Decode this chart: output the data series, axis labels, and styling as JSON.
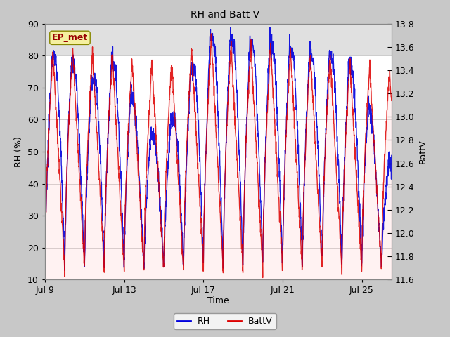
{
  "title": "RH and Batt V",
  "xlabel": "Time",
  "ylabel_left": "RH (%)",
  "ylabel_right": "BattV",
  "ylim_left": [
    10,
    90
  ],
  "ylim_right": [
    11.6,
    13.8
  ],
  "xtick_labels": [
    "Jul 9",
    "Jul 13",
    "Jul 17",
    "Jul 21",
    "Jul 25"
  ],
  "xtick_positions": [
    0,
    4,
    8,
    12,
    16
  ],
  "yticks_left": [
    10,
    20,
    30,
    40,
    50,
    60,
    70,
    80,
    90
  ],
  "yticks_right": [
    11.6,
    11.8,
    12.0,
    12.2,
    12.4,
    12.6,
    12.8,
    13.0,
    13.2,
    13.4,
    13.6,
    13.8
  ],
  "annotation_text": "EP_met",
  "fig_bg_color": "#c8c8c8",
  "plot_bg_color": "#ffffff",
  "top_band_color": "#e8e8e8",
  "rh_color": "#0000dd",
  "battv_color": "#dd0000",
  "battv_fill_color": "#ffcccc",
  "legend_rh": "RH",
  "legend_battv": "BattV",
  "total_days": 17.5,
  "num_points": 2000
}
